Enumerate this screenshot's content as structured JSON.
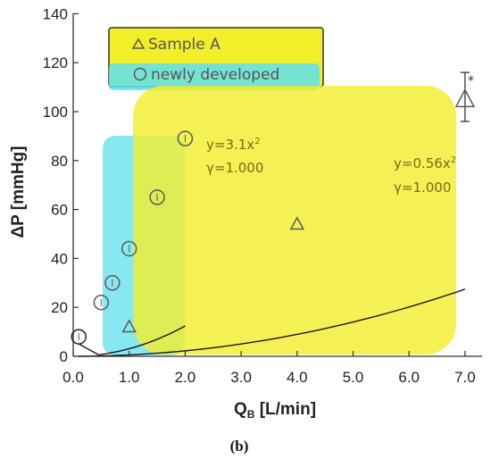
{
  "chart_data": {
    "type": "scatter",
    "xlabel": "Q",
    "xlabel_sub": "B",
    "xlabel_unit": " [L/min]",
    "ylabel": "ΔP [mmHg]",
    "xlim": [
      0.0,
      7.5
    ],
    "ylim": [
      0,
      140
    ],
    "x_ticks": [
      "0.0",
      "1.0",
      "2.0",
      "3.0",
      "4.0",
      "5.0",
      "6.0",
      "7.0"
    ],
    "y_ticks": [
      "0",
      "20",
      "40",
      "60",
      "80",
      "100",
      "120",
      "140"
    ],
    "grid": false,
    "legend_position": "top-left",
    "series": [
      {
        "name": "Sample A",
        "marker": "triangle",
        "points": [
          {
            "x": 1.0,
            "y": 12
          },
          {
            "x": 4.0,
            "y": 54
          },
          {
            "x": 7.0,
            "y": 105
          }
        ],
        "fit": {
          "a": 0.56,
          "x_from": 0.1,
          "x_to": 7.0
        }
      },
      {
        "name": "newly developed",
        "marker": "circle",
        "points": [
          {
            "x": 0.1,
            "y": 8
          },
          {
            "x": 0.5,
            "y": 22
          },
          {
            "x": 0.7,
            "y": 30
          },
          {
            "x": 1.0,
            "y": 44
          },
          {
            "x": 1.5,
            "y": 65
          },
          {
            "x": 2.0,
            "y": 89
          }
        ],
        "fit": {
          "a": 3.1,
          "x_from": 0.45,
          "x_to": 2.0
        }
      }
    ],
    "error_bar": {
      "x": 7.0,
      "y_low": 96,
      "y_high": 116
    },
    "annotations": {
      "asterisk": "*",
      "fit_new_eq": "y=3.1x",
      "fit_new_r": "γ=1.000",
      "fit_a_eq": "y=0.56x",
      "fit_a_r": "γ=1.000",
      "exponent": "2"
    },
    "caption": "(b)"
  },
  "colors": {
    "highlight_yellow": "#f2ee2a",
    "highlight_cyan": "#5fe0ee",
    "marker_new": "#5a5a5a",
    "marker_a": "#5a5a5a",
    "fit_line": "#1a1a1a",
    "annotation_text": "#7a6a14"
  }
}
